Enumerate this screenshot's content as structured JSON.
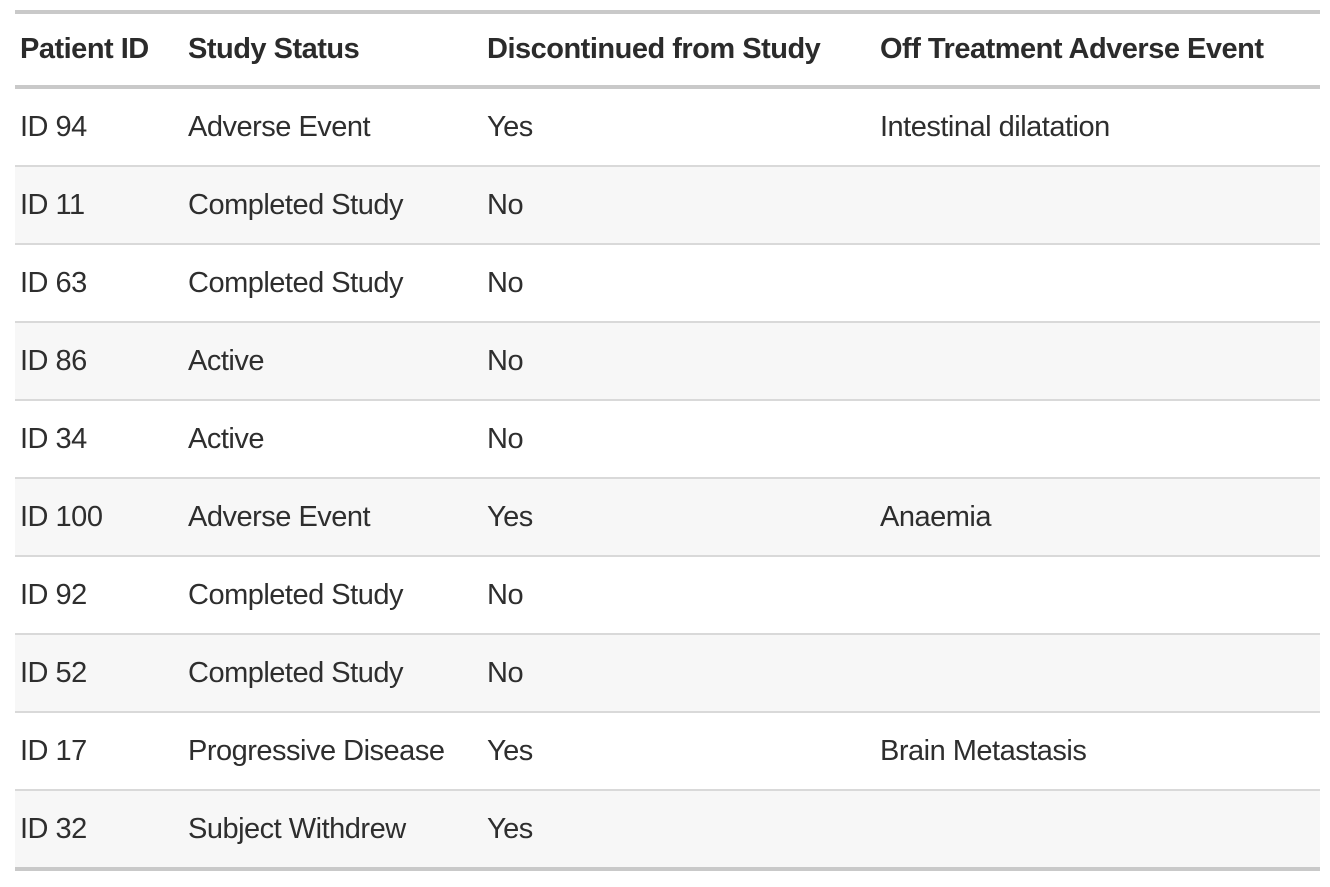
{
  "chart_data": {
    "type": "table",
    "title": "",
    "columns": [
      "Patient ID",
      "Study Status",
      "Discontinued from Study",
      "Off Treatment Adverse Event"
    ],
    "rows": [
      [
        "ID 94",
        "Adverse Event",
        "Yes",
        "Intestinal dilatation"
      ],
      [
        "ID 11",
        "Completed Study",
        "No",
        ""
      ],
      [
        "ID 63",
        "Completed Study",
        "No",
        ""
      ],
      [
        "ID 86",
        "Active",
        "No",
        ""
      ],
      [
        "ID 34",
        "Active",
        "No",
        ""
      ],
      [
        "ID 100",
        "Adverse Event",
        "Yes",
        "Anaemia"
      ],
      [
        "ID 92",
        "Completed Study",
        "No",
        ""
      ],
      [
        "ID 52",
        "Completed Study",
        "No",
        ""
      ],
      [
        "ID 17",
        "Progressive Disease",
        "Yes",
        "Brain Metastasis"
      ],
      [
        "ID 32",
        "Subject Withdrew",
        "Yes",
        ""
      ]
    ],
    "layout": {
      "zebra_striping": "even rows shaded",
      "row_count_visible": 10
    }
  },
  "colors": {
    "page_background": "#ffffff",
    "stripe_row_background": "#f7f7f7",
    "outer_border": "#c9c9c9",
    "row_separator": "#d9d9d9",
    "header_text": "#2b2b2b",
    "body_text": "#2e2e2e"
  }
}
